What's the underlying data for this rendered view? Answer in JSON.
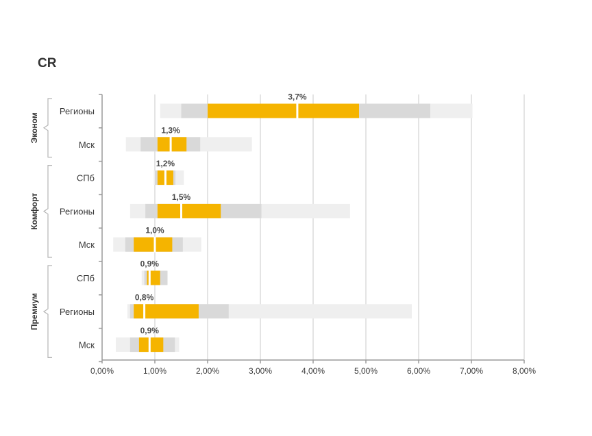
{
  "chart_data": {
    "type": "bar",
    "orientation": "horizontal",
    "title": "CR",
    "xlabel": "",
    "ylabel": "",
    "xlim": [
      0,
      8
    ],
    "x_ticks": [
      "0,00%",
      "1,00%",
      "2,00%",
      "3,00%",
      "4,00%",
      "5,00%",
      "6,00%",
      "7,00%",
      "8,00%"
    ],
    "grid": "vertical",
    "groups": [
      {
        "label": "Эконом",
        "rows": [
          0,
          1
        ]
      },
      {
        "label": "Комфорт",
        "rows": [
          2,
          3,
          4
        ]
      },
      {
        "label": "Премиум",
        "rows": [
          5,
          6,
          7
        ]
      }
    ],
    "rows": [
      {
        "category": "Регионы",
        "label": "3,7%",
        "median": 3.7,
        "min": 1.1,
        "p10": 1.5,
        "q1": 2.0,
        "q3": 4.87,
        "p90": 6.22,
        "max": 7.02
      },
      {
        "category": "Мск",
        "label": "1,3%",
        "median": 1.3,
        "min": 0.45,
        "p10": 0.73,
        "q1": 1.05,
        "q3": 1.6,
        "p90": 1.86,
        "max": 2.84
      },
      {
        "category": "СПб",
        "label": "1,2%",
        "median": 1.2,
        "min": 0.98,
        "p10": 1.0,
        "q1": 1.05,
        "q3": 1.35,
        "p90": 1.39,
        "max": 1.55
      },
      {
        "category": "Регионы",
        "label": "1,5%",
        "median": 1.5,
        "min": 0.53,
        "p10": 0.82,
        "q1": 1.05,
        "q3": 2.25,
        "p90": 3.02,
        "max": 4.7
      },
      {
        "category": "Мск",
        "label": "1,0%",
        "median": 1.0,
        "min": 0.21,
        "p10": 0.44,
        "q1": 0.6,
        "q3": 1.33,
        "p90": 1.53,
        "max": 1.88
      },
      {
        "category": "СПб",
        "label": "0,9%",
        "median": 0.9,
        "min": 0.75,
        "p10": 0.8,
        "q1": 0.85,
        "q3": 1.1,
        "p90": 1.24,
        "max": 1.24
      },
      {
        "category": "Регионы",
        "label": "0,8%",
        "median": 0.8,
        "min": 0.48,
        "p10": 0.53,
        "q1": 0.6,
        "q3": 1.83,
        "p90": 2.4,
        "max": 5.87
      },
      {
        "category": "Мск",
        "label": "0,9%",
        "median": 0.9,
        "min": 0.26,
        "p10": 0.53,
        "q1": 0.7,
        "q3": 1.16,
        "p90": 1.38,
        "max": 1.46
      }
    ],
    "colors": {
      "range_outer": "#efefef",
      "range_mid": "#d9d9d9",
      "range_inner": "#f5b400",
      "median": "#ffffff",
      "grid": "#c9c9c9",
      "axis": "#9a9a9a"
    }
  }
}
